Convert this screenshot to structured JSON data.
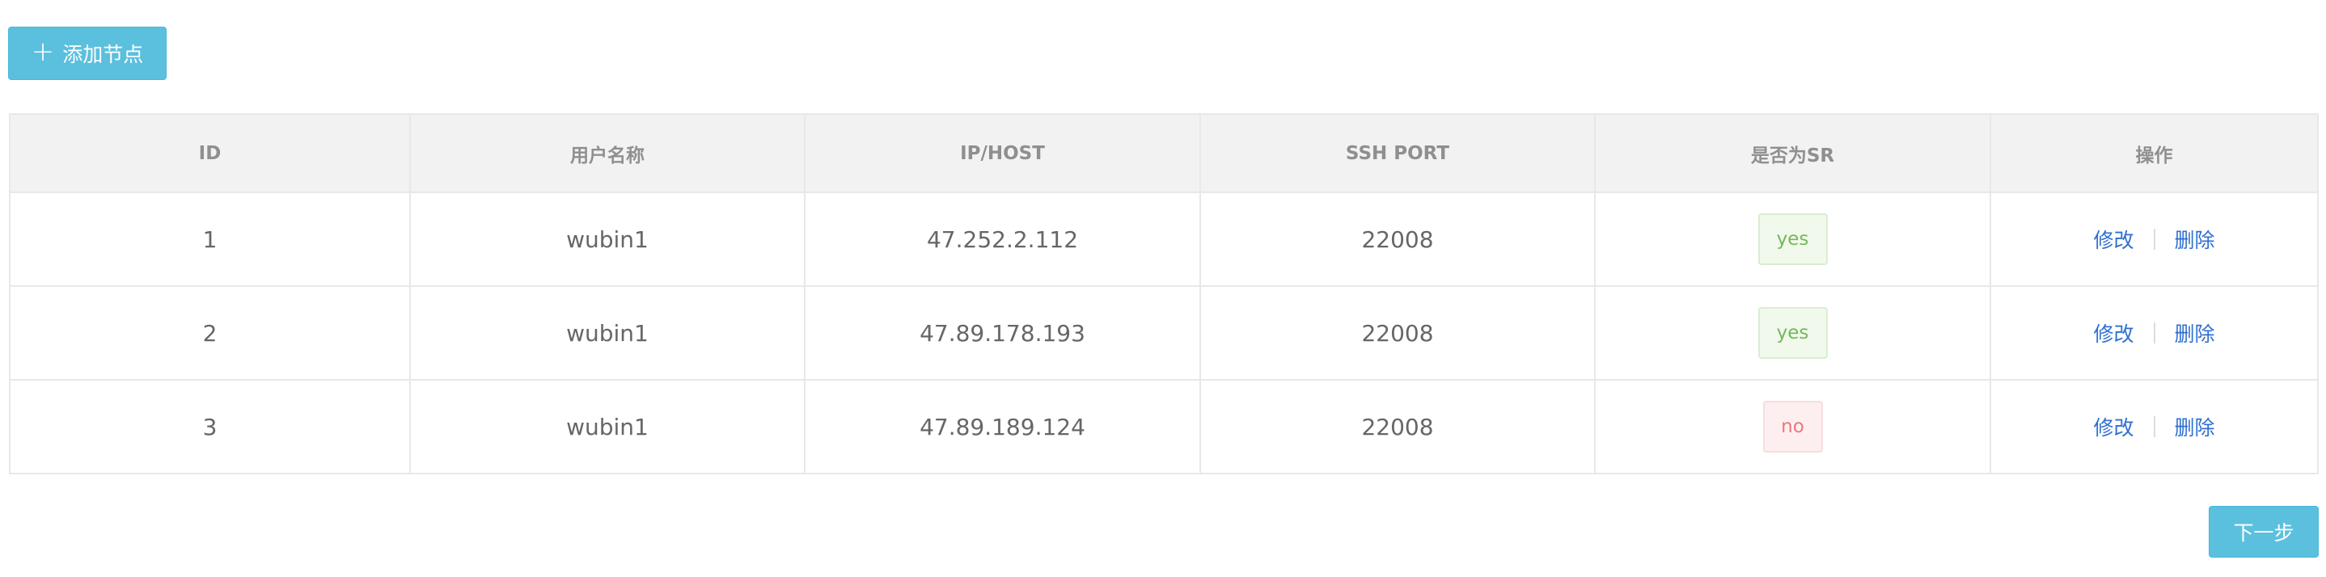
{
  "toolbar": {
    "add_icon": "plus-icon",
    "add_label": "添加节点"
  },
  "table": {
    "columns": [
      "ID",
      "用户名称",
      "IP/HOST",
      "SSH PORT",
      "是否为SR",
      "操作"
    ],
    "rows": [
      {
        "id": "1",
        "username": "wubin1",
        "host": "47.252.2.112",
        "ssh_port": "22008",
        "is_sr": "yes",
        "edit": "修改",
        "delete": "删除"
      },
      {
        "id": "2",
        "username": "wubin1",
        "host": "47.89.178.193",
        "ssh_port": "22008",
        "is_sr": "yes",
        "edit": "修改",
        "delete": "删除"
      },
      {
        "id": "3",
        "username": "wubin1",
        "host": "47.89.189.124",
        "ssh_port": "22008",
        "is_sr": "no",
        "edit": "修改",
        "delete": "删除"
      }
    ]
  },
  "footer": {
    "next_label": "下一步"
  },
  "colors": {
    "primary_button": "#5bc0de",
    "link": "#2f6fd0",
    "tag_yes_text": "#76b85c",
    "tag_no_text": "#e97a7f"
  }
}
